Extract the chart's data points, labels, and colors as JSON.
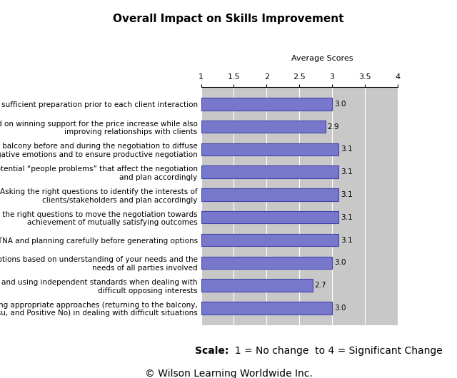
{
  "title": "Overall Impact on Skills Improvement",
  "avg_scores_label": "Average Scores",
  "xlim": [
    1,
    4
  ],
  "xticks": [
    1,
    1.5,
    2,
    2.5,
    3,
    3.5,
    4
  ],
  "xtick_labels": [
    "1",
    "1.5",
    "2",
    "2.5",
    "3",
    "3.5",
    "4"
  ],
  "bar_color": "#7777cc",
  "bar_edge_color": "#4444aa",
  "background_color": "#c8c8c8",
  "categories": [
    "Ensuring sufficient preparation prior to each client interaction",
    "Staying focused on winning support for the price increase while also\nimproving relationships with clients",
    "Going to the balcony before and during the negotiation to diffuse\nnegative emotions and to ensure productive negotiation",
    "Identifying potential “people problems” that affect the negotiation\nand plan accordingly",
    "Asking the right questions to identify the interests of\nclients/stakeholders and plan accordingly",
    "Asking the right questions to move the negotiation towards\nachievement of mutually satisfying outcomes",
    "Developing BATNA and planning carefully before generating options",
    "Generating options based on understanding of your needs and the\nneeds of all parties involved",
    "Identifying and using independent standards when dealing with\ndifficult opposing interests",
    "Using appropriate approaches (returning to the balcony,\nreframe/jujitsu, and Positive No) in dealing with difficult situations"
  ],
  "values": [
    3.0,
    2.9,
    3.1,
    3.1,
    3.1,
    3.1,
    3.1,
    3.0,
    2.7,
    3.0
  ],
  "scale_text_bold": "Scale:",
  "scale_text_normal": "  1 = No change  to 4 = Significant Change",
  "copyright_text": "© Wilson Learning Worldwide Inc.",
  "title_fontsize": 11,
  "label_fontsize": 7.5,
  "value_fontsize": 7.5,
  "tick_fontsize": 8,
  "avg_label_fontsize": 8,
  "footer_fontsize": 10,
  "copyright_fontsize": 10
}
